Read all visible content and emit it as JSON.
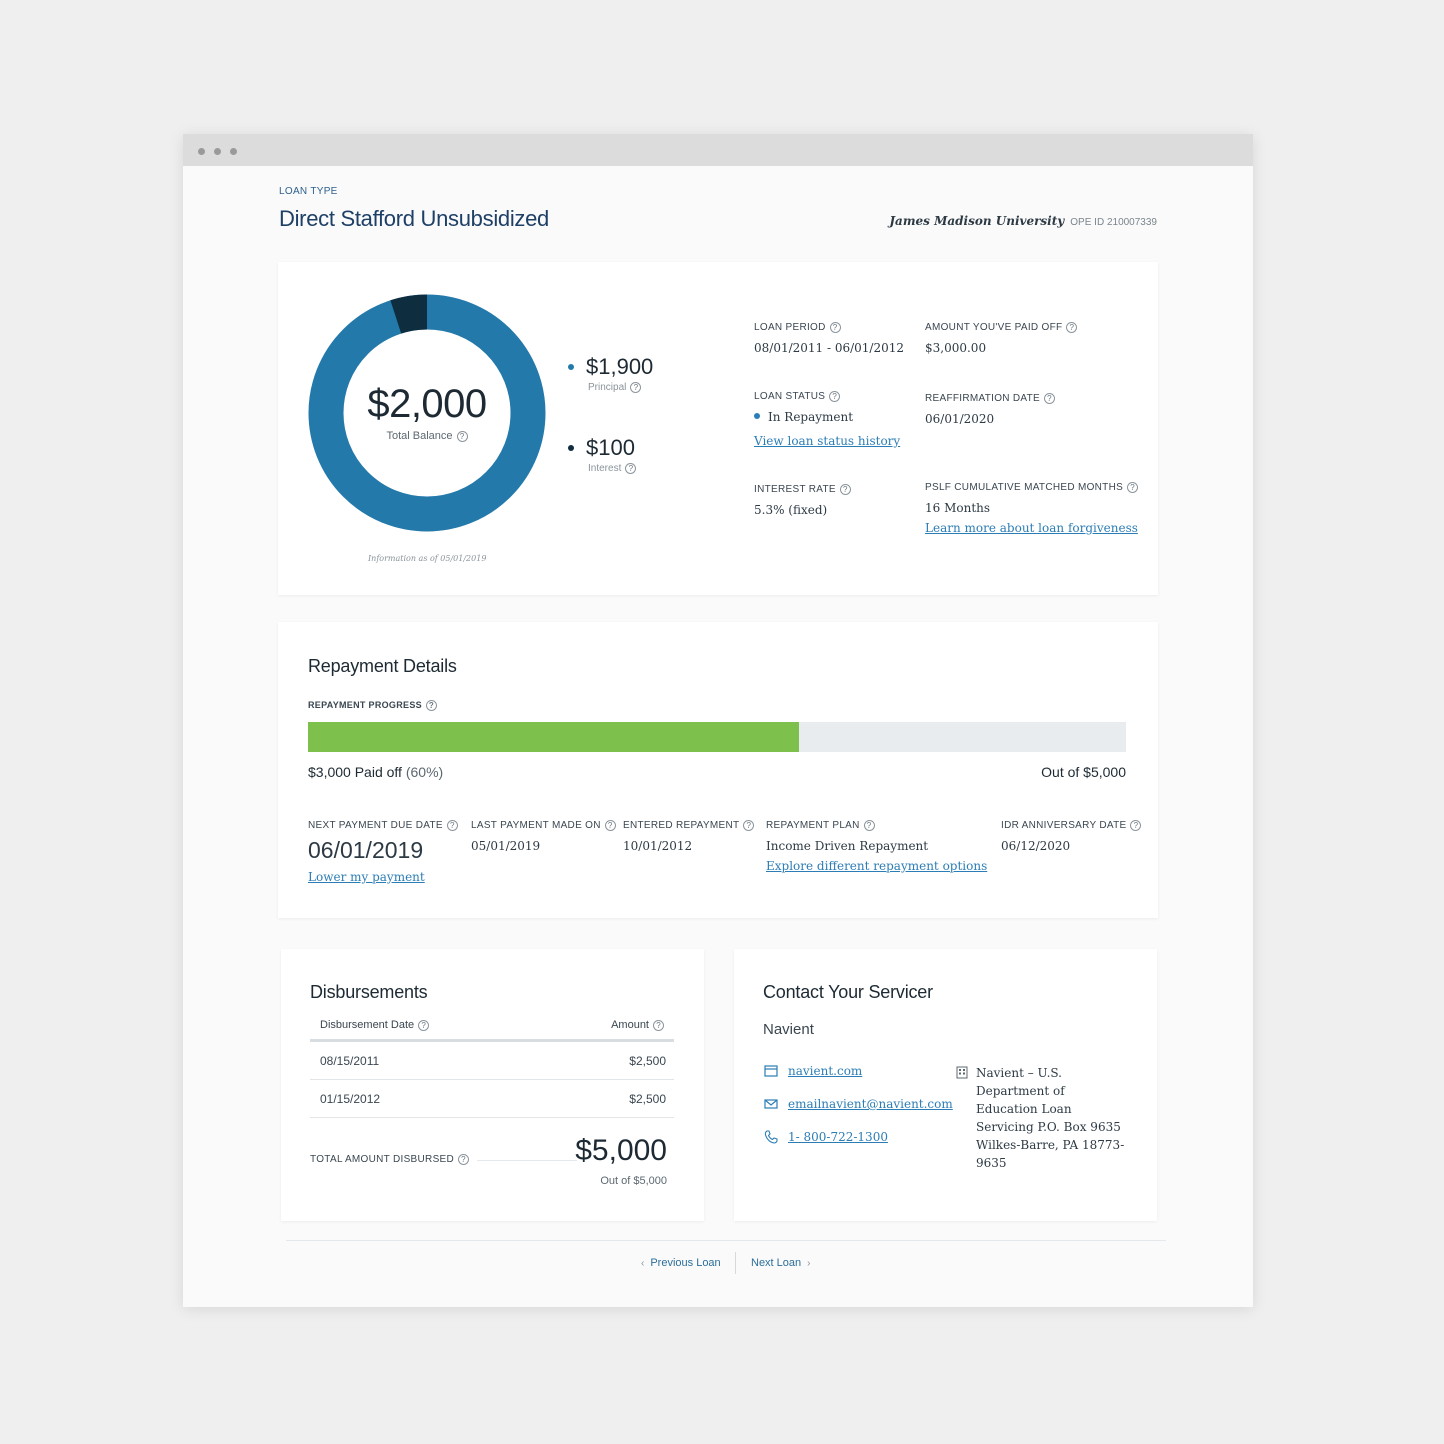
{
  "header": {
    "loan_type_label": "LOAN TYPE",
    "loan_title": "Direct Stafford Unsubsidized",
    "school_name": "James Madison University",
    "ope_id": "OPE ID 210007339"
  },
  "summary": {
    "total_balance": "$2,000",
    "total_balance_label": "Total Balance",
    "principal": "$1,900",
    "principal_label": "Principal",
    "interest": "$100",
    "interest_label": "Interest",
    "as_of": "Information as of 05/01/2019",
    "colors": {
      "principal": "#2479ab",
      "interest": "#0e2d3f"
    },
    "loan_period_label": "LOAN PERIOD",
    "loan_period": "08/01/2011 - 06/01/2012",
    "paid_off_label": "AMOUNT YOU'VE PAID OFF",
    "paid_off": "$3,000.00",
    "loan_status_label": "LOAN STATUS",
    "loan_status": "In Repayment",
    "loan_status_link": "View loan status history",
    "reaffirmation_label": "REAFFIRMATION DATE",
    "reaffirmation": "06/01/2020",
    "interest_rate_label": "INTEREST RATE",
    "interest_rate": "5.3% (fixed)",
    "pslf_label": "PSLF CUMULATIVE MATCHED MONTHS",
    "pslf": "16 Months",
    "pslf_link": "Learn more about loan forgiveness"
  },
  "repayment": {
    "title": "Repayment Details",
    "progress_label": "REPAYMENT PROGRESS",
    "progress_fraction": 0.6,
    "paid_text": "$3,000 Paid off",
    "paid_pct": "(60%)",
    "out_of": "Out of $5,000",
    "next_due_label": "NEXT PAYMENT DUE DATE",
    "next_due": "06/01/2019",
    "lower_link": "Lower my payment",
    "last_payment_label": "LAST PAYMENT MADE ON",
    "last_payment": "05/01/2019",
    "entered_label": "ENTERED REPAYMENT",
    "entered": "10/01/2012",
    "plan_label": "REPAYMENT PLAN",
    "plan": "Income Driven Repayment",
    "plan_link": "Explore different repayment options",
    "idr_label": "IDR ANNIVERSARY DATE",
    "idr": "06/12/2020"
  },
  "disbursements": {
    "title": "Disbursements",
    "col_date": "Disbursement Date",
    "col_amount": "Amount",
    "rows": [
      {
        "date": "08/15/2011",
        "amount": "$2,500"
      },
      {
        "date": "01/15/2012",
        "amount": "$2,500"
      }
    ],
    "total_label": "TOTAL AMOUNT DISBURSED",
    "total": "$5,000",
    "total_sub": "Out of $5,000"
  },
  "servicer": {
    "title": "Contact Your Servicer",
    "name": "Navient",
    "website": "navient.com",
    "email": "emailnavient@navient.com",
    "phone": "1- 800-722-1300",
    "address": "Navient – U.S. Department of Education Loan Servicing P.O. Box 9635 Wilkes-Barre, PA 18773-9635"
  },
  "pager": {
    "previous": "Previous Loan",
    "next": "Next Loan"
  }
}
